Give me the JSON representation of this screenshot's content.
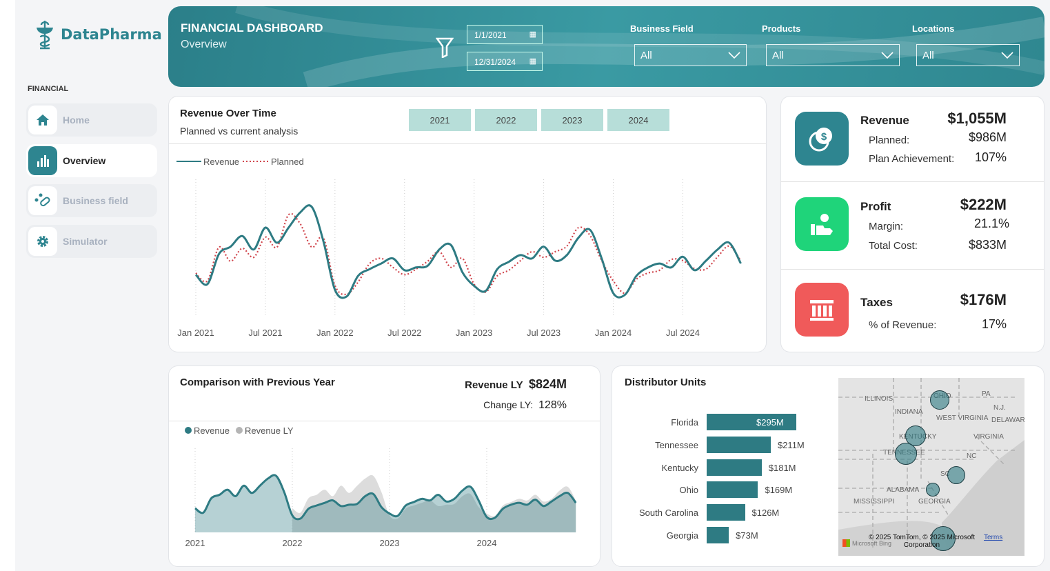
{
  "brand": {
    "name": "DataPharma"
  },
  "sidebar": {
    "section": "FINANCIAL",
    "items": [
      {
        "label": "Home",
        "icon": "home-icon",
        "active": false
      },
      {
        "label": "Overview",
        "icon": "bar-chart-icon",
        "active": true
      },
      {
        "label": "Business field",
        "icon": "pills-icon",
        "active": false
      },
      {
        "label": "Simulator",
        "icon": "gear-icon",
        "active": false
      }
    ]
  },
  "header": {
    "title": "FINANCIAL DASHBOARD",
    "subtitle": "Overview",
    "date_start": "1/1/2021",
    "date_end": "12/31/2024",
    "filters": [
      {
        "label": "Business Field",
        "value": "All"
      },
      {
        "label": "Products",
        "value": "All"
      },
      {
        "label": "Locations",
        "value": "All"
      }
    ]
  },
  "revenue_chart": {
    "title": "Revenue Over Time",
    "subtitle": "Planned vs current analysis",
    "year_buttons": [
      "2021",
      "2022",
      "2023",
      "2024"
    ]
  },
  "kpis": {
    "revenue": {
      "label": "Revenue",
      "value": "$1,055M",
      "rows": [
        {
          "label": "Planned:",
          "value": "$986M"
        },
        {
          "label": "Plan Achievement:",
          "value": "107%"
        }
      ],
      "color": "#2e8590"
    },
    "profit": {
      "label": "Profit",
      "value": "$222M",
      "rows": [
        {
          "label": "Margin:",
          "value": "21.1%"
        },
        {
          "label": "Total Cost:",
          "value": "$833M"
        }
      ],
      "color": "#1fd47a"
    },
    "taxes": {
      "label": "Taxes",
      "value": "$176M",
      "rows": [
        {
          "label": "% of Revenue:",
          "value": "17%"
        }
      ],
      "color": "#f05a5a"
    }
  },
  "comparison": {
    "title": "Comparison with Previous Year",
    "revenue_ly_label": "Revenue LY",
    "revenue_ly_value": "$824M",
    "change_label": "Change LY:",
    "change_value": "128%"
  },
  "distributor": {
    "title": "Distributor Units"
  },
  "map": {
    "labels": [
      "ILLINOIS",
      "INDIANA",
      "OHIO",
      "PA",
      "N.J.",
      "WEST VIRGINIA",
      "DELAWAR",
      "KENTUCKY",
      "VIRGINIA",
      "TENNESSEE",
      "NC",
      "SC",
      "ALABAMA",
      "MISSISSIPPI",
      "GEORGIA"
    ],
    "attribution": "© 2025 TomTom, © 2025 Microsoft Corporation",
    "terms": "Terms",
    "bing": "Microsoft Bing"
  },
  "chart_data": [
    {
      "type": "line",
      "title": "Revenue Over Time",
      "x_ticks": [
        "Jan 2021",
        "Jul 2021",
        "Jan 2022",
        "Jul 2022",
        "Jan 2023",
        "Jul 2023",
        "Jan 2024",
        "Jul 2024"
      ],
      "x_start": "2021-01",
      "x_end": "2024-12",
      "grid": "vertical-dotted",
      "legend": "top-left",
      "series": [
        {
          "name": "Revenue",
          "color": "#2e7b83",
          "style": "solid",
          "values": [
            17.9,
            16.2,
            21.6,
            22.9,
            24.8,
            22.4,
            26.3,
            23.6,
            26.3,
            29.0,
            30.0,
            23.9,
            15.2,
            14.0,
            17.7,
            18.9,
            19.9,
            20.8,
            18.7,
            19.2,
            19.5,
            22.4,
            23.2,
            18.3,
            15.9,
            15.0,
            18.9,
            20.2,
            21.4,
            20.8,
            22.9,
            20.4,
            21.4,
            24.5,
            25.9,
            20.8,
            14.6,
            14.3,
            17.7,
            19.2,
            19.9,
            19.2,
            21.1,
            18.7,
            20.4,
            22.4,
            23.6,
            19.9
          ]
        },
        {
          "name": "Planned",
          "color": "#d0454c",
          "style": "dotted",
          "values": [
            18.2,
            16.8,
            22.8,
            20.3,
            22.6,
            21.0,
            24.6,
            22.8,
            28.6,
            27.0,
            22.8,
            24.5,
            16.0,
            14.4,
            16.6,
            19.9,
            20.8,
            19.2,
            17.9,
            18.9,
            20.3,
            22.0,
            19.2,
            20.8,
            16.2,
            14.8,
            17.7,
            18.7,
            20.4,
            22.0,
            21.0,
            22.0,
            23.0,
            26.3,
            24.9,
            20.4,
            16.8,
            14.6,
            17.1,
            18.2,
            18.7,
            20.6,
            20.4,
            19.0,
            18.9,
            21.1,
            23.0,
            20.4
          ]
        }
      ]
    },
    {
      "type": "area",
      "title": "Comparison with Previous Year",
      "x_ticks": [
        "2021",
        "2022",
        "2023",
        "2024"
      ],
      "x_start": "2021-01",
      "x_end": "2024-12",
      "grid": "vertical-dotted",
      "legend": "top-left",
      "series": [
        {
          "name": "Revenue",
          "color": "#2e7b83",
          "values": [
            17.9,
            16.2,
            21.6,
            22.9,
            24.8,
            22.4,
            26.3,
            23.6,
            26.3,
            29.0,
            30.0,
            23.9,
            15.2,
            14.0,
            17.7,
            18.9,
            19.9,
            20.8,
            18.7,
            19.2,
            19.5,
            22.4,
            23.2,
            18.3,
            15.9,
            15.0,
            18.9,
            20.2,
            21.4,
            20.8,
            22.9,
            20.4,
            21.4,
            24.5,
            25.9,
            20.8,
            14.6,
            14.3,
            17.7,
            19.2,
            19.9,
            19.2,
            21.1,
            18.7,
            20.4,
            22.4,
            23.6,
            19.9
          ]
        },
        {
          "name": "Revenue LY",
          "color": "#b5b5b5",
          "values": [
            null,
            null,
            null,
            null,
            null,
            null,
            null,
            null,
            null,
            null,
            null,
            null,
            17.9,
            16.2,
            21.6,
            22.9,
            24.8,
            22.4,
            26.3,
            23.6,
            26.3,
            29.0,
            30.0,
            23.9,
            15.2,
            14.0,
            17.7,
            18.9,
            19.9,
            20.8,
            18.7,
            19.2,
            19.5,
            22.4,
            23.2,
            18.3,
            15.9,
            15.0,
            18.9,
            20.2,
            21.4,
            20.8,
            22.9,
            20.4,
            21.4,
            24.5,
            25.9,
            20.8
          ]
        }
      ]
    },
    {
      "type": "bar",
      "orientation": "horizontal",
      "title": "Distributor Units",
      "categories": [
        "Florida",
        "Tennessee",
        "Kentucky",
        "Ohio",
        "South Carolina",
        "Georgia"
      ],
      "values": [
        295,
        211,
        181,
        169,
        126,
        73
      ],
      "labels": [
        "$295M",
        "$211M",
        "$181M",
        "$169M",
        "$126M",
        "$73M"
      ],
      "unit": "$M",
      "color": "#2e7b83"
    }
  ]
}
